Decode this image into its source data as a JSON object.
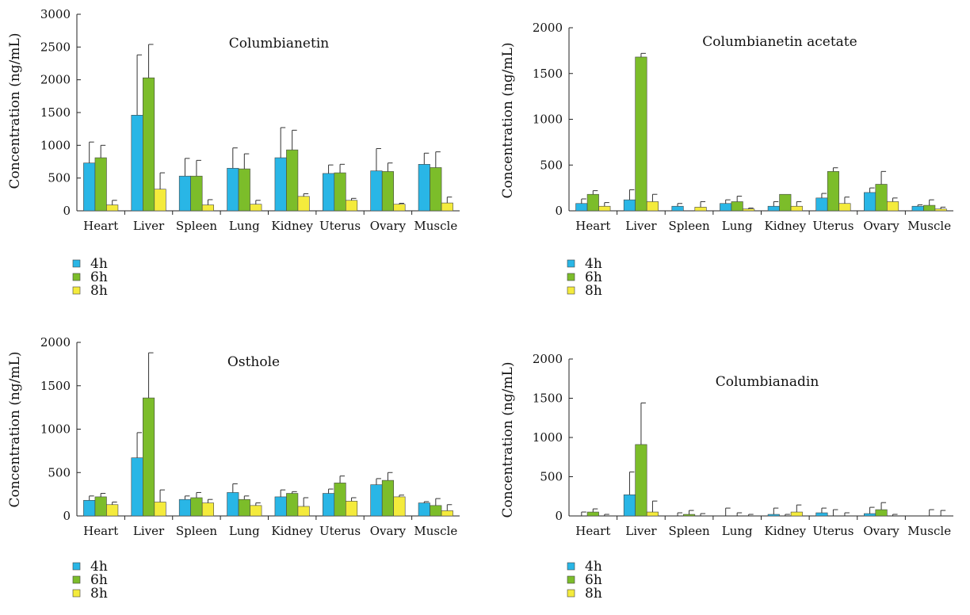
{
  "legend_items": [
    {
      "label": "4h",
      "color": "#29b6e6"
    },
    {
      "label": "6h",
      "color": "#7cbd2a"
    },
    {
      "label": "8h",
      "color": "#f4eb3c"
    }
  ],
  "chart_data": [
    {
      "type": "bar",
      "title": "Columbianetin",
      "ylabel": "Concentration (ng/mL)",
      "categories": [
        "Heart",
        "Liver",
        "Spleen",
        "Lung",
        "Kidney",
        "Uterus",
        "Ovary",
        "Muscle"
      ],
      "ylim": [
        0,
        3000
      ],
      "yticks": [
        0,
        500,
        1000,
        1500,
        2000,
        2500,
        3000
      ],
      "series": [
        {
          "name": "4h",
          "values": [
            730,
            1460,
            530,
            650,
            810,
            570,
            610,
            710
          ],
          "errors": [
            320,
            920,
            270,
            310,
            460,
            130,
            340,
            170
          ]
        },
        {
          "name": "6h",
          "values": [
            810,
            2030,
            530,
            640,
            930,
            580,
            600,
            660
          ],
          "errors": [
            190,
            510,
            240,
            230,
            300,
            130,
            130,
            240
          ]
        },
        {
          "name": "8h",
          "values": [
            90,
            330,
            90,
            100,
            220,
            160,
            100,
            120
          ],
          "errors": [
            70,
            250,
            80,
            60,
            40,
            30,
            15,
            90
          ]
        }
      ]
    },
    {
      "type": "bar",
      "title": "Columbianetin acetate",
      "ylabel": "Concentration (ng/mL)",
      "categories": [
        "Heart",
        "Liver",
        "Spleen",
        "Lung",
        "Kidney",
        "Uterus",
        "Ovary",
        "Muscle"
      ],
      "ylim": [
        0,
        2000
      ],
      "yticks": [
        0,
        500,
        1000,
        1500,
        2000
      ],
      "series": [
        {
          "name": "4h",
          "values": [
            80,
            120,
            50,
            80,
            50,
            140,
            200,
            50
          ],
          "errors": [
            50,
            110,
            30,
            40,
            50,
            50,
            50,
            15
          ]
        },
        {
          "name": "6h",
          "values": [
            180,
            1680,
            0,
            100,
            180,
            430,
            290,
            60
          ],
          "errors": [
            40,
            40,
            0,
            60,
            0,
            40,
            140,
            60
          ]
        },
        {
          "name": "8h",
          "values": [
            50,
            100,
            40,
            20,
            50,
            80,
            100,
            20
          ],
          "errors": [
            40,
            80,
            60,
            10,
            50,
            70,
            40,
            20
          ]
        }
      ]
    },
    {
      "type": "bar",
      "title": "Osthole",
      "ylabel": "Concentration (ng/mL)",
      "categories": [
        "Heart",
        "Liver",
        "Spleen",
        "Lung",
        "Kidney",
        "Uterus",
        "Ovary",
        "Muscle"
      ],
      "ylim": [
        0,
        2000
      ],
      "yticks": [
        0,
        500,
        1000,
        1500,
        2000
      ],
      "series": [
        {
          "name": "4h",
          "values": [
            180,
            670,
            190,
            270,
            220,
            260,
            360,
            150
          ],
          "errors": [
            50,
            290,
            40,
            100,
            80,
            50,
            70,
            15
          ]
        },
        {
          "name": "6h",
          "values": [
            220,
            1360,
            210,
            190,
            260,
            380,
            410,
            120
          ],
          "errors": [
            40,
            520,
            60,
            40,
            20,
            80,
            90,
            80
          ]
        },
        {
          "name": "8h",
          "values": [
            130,
            160,
            150,
            120,
            110,
            170,
            220,
            60
          ],
          "errors": [
            30,
            140,
            40,
            30,
            100,
            40,
            20,
            70
          ]
        }
      ]
    },
    {
      "type": "bar",
      "title": "Columbianadin",
      "ylabel": "Concentration (ng/mL)",
      "categories": [
        "Heart",
        "Liver",
        "Spleen",
        "Lung",
        "Kidney",
        "Uterus",
        "Ovary",
        "Muscle"
      ],
      "ylim": [
        0,
        2000
      ],
      "yticks": [
        0,
        500,
        1000,
        1500,
        2000
      ],
      "series": [
        {
          "name": "4h",
          "values": [
            0,
            270,
            0,
            0,
            20,
            40,
            30,
            0
          ],
          "errors": [
            50,
            290,
            40,
            100,
            80,
            60,
            80,
            0
          ]
        },
        {
          "name": "6h",
          "values": [
            50,
            910,
            20,
            0,
            0,
            0,
            80,
            0
          ],
          "errors": [
            40,
            530,
            50,
            40,
            20,
            80,
            90,
            80
          ]
        },
        {
          "name": "8h",
          "values": [
            0,
            50,
            0,
            0,
            50,
            0,
            0,
            0
          ],
          "errors": [
            20,
            140,
            30,
            20,
            90,
            40,
            20,
            70
          ]
        }
      ]
    }
  ]
}
